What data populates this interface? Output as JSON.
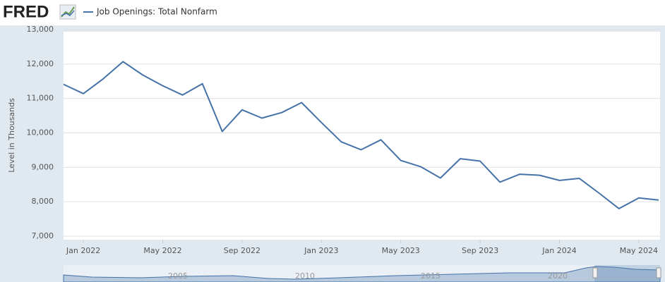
{
  "logo": "FRED",
  "chart_data": {
    "type": "line",
    "y_label": "Level in Thousands",
    "categories": [
      null,
      "Jan 2022",
      null,
      null,
      null,
      "May 2022",
      null,
      null,
      null,
      "Sep 2022",
      null,
      null,
      null,
      "Jan 2023",
      null,
      null,
      null,
      "May 2023",
      null,
      null,
      null,
      "Sep 2023",
      null,
      null,
      null,
      "Jan 2024",
      null,
      null,
      null,
      "May 2024",
      null
    ],
    "series": [
      {
        "name": "Job Openings: Total Nonfarm",
        "color": "#4572a7",
        "values": [
          11410,
          11140,
          11570,
          12070,
          11680,
          11370,
          11100,
          11430,
          10040,
          10670,
          10430,
          10590,
          10880,
          10300,
          9740,
          9510,
          9800,
          9200,
          9020,
          8690,
          9250,
          9180,
          8570,
          8800,
          8770,
          8620,
          8680,
          8250,
          7800,
          8110,
          8050
        ]
      }
    ],
    "ylim": [
      7000,
      13000
    ],
    "yticks": [
      {
        "value": 7000,
        "label": "7,000"
      },
      {
        "value": 8000,
        "label": "8,000"
      },
      {
        "value": 9000,
        "label": "9,000"
      },
      {
        "value": 10000,
        "label": "10,000"
      },
      {
        "value": 11000,
        "label": "11,000"
      },
      {
        "value": 12000,
        "label": "12,000"
      },
      {
        "value": 13000,
        "label": "13,000"
      }
    ],
    "grid": true
  },
  "navigator_labels": [
    "2005",
    "2010",
    "2015",
    "2020"
  ]
}
